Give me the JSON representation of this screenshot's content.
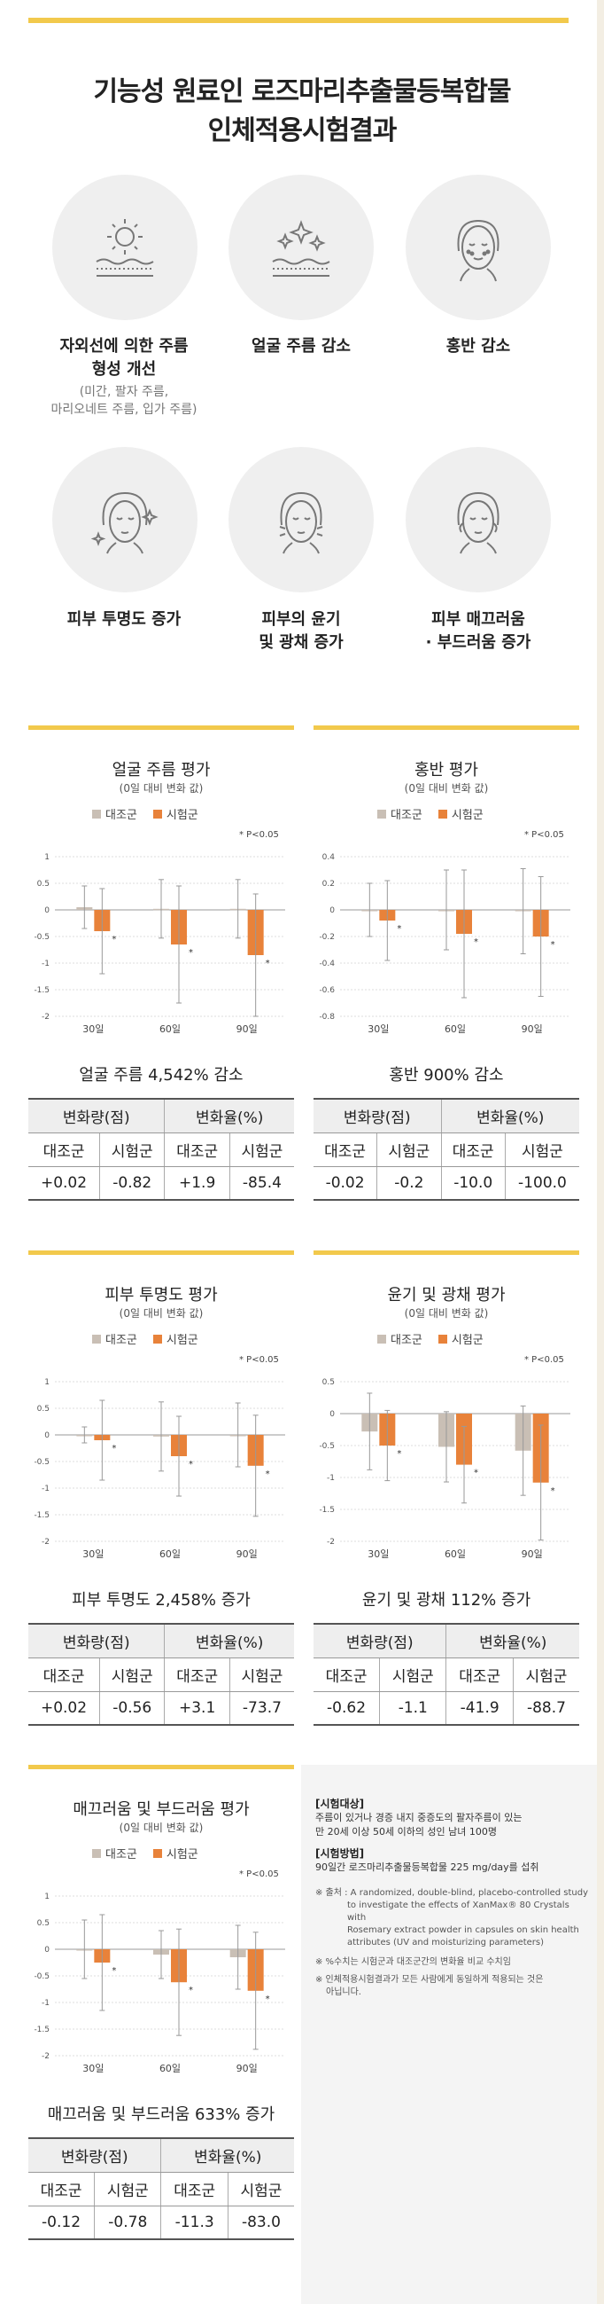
{
  "title": {
    "line1": "기능성 원료인 로즈마리추출물등복합물",
    "line2": "인체적용시험결과"
  },
  "effects": [
    {
      "label1": "자외선에 의한 주름",
      "label2": "형성 개선",
      "sub1": "(미간, 팔자 주름,",
      "sub2": "마리오네트 주름, 입가 주름)",
      "icon": "sun-skin-icon"
    },
    {
      "label1": "얼굴 주름 감소",
      "label2": "",
      "sub1": "",
      "sub2": "",
      "icon": "sparkle-skin-icon"
    },
    {
      "label1": "홍반 감소",
      "label2": "",
      "sub1": "",
      "sub2": "",
      "icon": "face-redness-icon"
    },
    {
      "label1": "피부 투명도 증가",
      "label2": "",
      "sub1": "",
      "sub2": "",
      "icon": "face-sparkle-icon"
    },
    {
      "label1": "피부의 윤기",
      "label2": "및 광채 증가",
      "sub1": "",
      "sub2": "",
      "icon": "face-glow-icon"
    },
    {
      "label1": "피부 매끄러움",
      "label2": "· 부드러움 증가",
      "sub1": "",
      "sub2": "",
      "icon": "face-smooth-icon"
    }
  ],
  "legend": {
    "control": "대조군",
    "test": "시험군"
  },
  "colors": {
    "control": "#c9bfb5",
    "test": "#e8823a",
    "accent": "#f2c94c"
  },
  "p_note": "* P<0.05",
  "chart_data": [
    {
      "type": "bar",
      "title": "얼굴 주름 평가",
      "subtitle": "(0일 대비 변화 값)",
      "categories": [
        "30일",
        "60일",
        "90일"
      ],
      "ylim": [
        -2,
        1
      ],
      "yticks": [
        1,
        0.5,
        0,
        -0.5,
        -1,
        -1.5,
        -2
      ],
      "series": [
        {
          "name": "대조군",
          "values": [
            0.05,
            0.02,
            0.02
          ],
          "err": [
            0.4,
            0.55,
            0.55
          ]
        },
        {
          "name": "시험군",
          "values": [
            -0.4,
            -0.65,
            -0.85
          ],
          "err": [
            0.8,
            1.1,
            1.15
          ]
        }
      ],
      "significant": [
        true,
        true,
        true
      ],
      "result": "얼굴 주름 4,542% 감소",
      "table": {
        "change_amount": "변화량(점)",
        "change_rate": "변화율(%)",
        "control": "대조군",
        "test": "시험군",
        "values": [
          "+0.02",
          "-0.82",
          "+1.9",
          "-85.4"
        ]
      }
    },
    {
      "type": "bar",
      "title": "홍반 평가",
      "subtitle": "(0일 대비 변화 값)",
      "categories": [
        "30일",
        "60일",
        "90일"
      ],
      "ylim": [
        -0.8,
        0.4
      ],
      "yticks": [
        0.4,
        0.2,
        0,
        -0.2,
        -0.4,
        -0.6,
        -0.8
      ],
      "series": [
        {
          "name": "대조군",
          "values": [
            0.0,
            0.0,
            -0.01
          ],
          "err": [
            0.2,
            0.3,
            0.32
          ]
        },
        {
          "name": "시험군",
          "values": [
            -0.08,
            -0.18,
            -0.2
          ],
          "err": [
            0.3,
            0.48,
            0.45
          ]
        }
      ],
      "significant": [
        true,
        true,
        true
      ],
      "result": "홍반 900% 감소",
      "table": {
        "change_amount": "변화량(점)",
        "change_rate": "변화율(%)",
        "control": "대조군",
        "test": "시험군",
        "values": [
          "-0.02",
          "-0.2",
          "-10.0",
          "-100.0"
        ]
      }
    },
    {
      "type": "bar",
      "title": "피부 투명도 평가",
      "subtitle": "(0일 대비 변화 값)",
      "categories": [
        "30일",
        "60일",
        "90일"
      ],
      "ylim": [
        -2,
        1
      ],
      "yticks": [
        1,
        0.5,
        0,
        -0.5,
        -1,
        -1.5,
        -2
      ],
      "series": [
        {
          "name": "대조군",
          "values": [
            0.0,
            -0.03,
            0.0
          ],
          "err": [
            0.15,
            0.65,
            0.6
          ]
        },
        {
          "name": "시험군",
          "values": [
            -0.1,
            -0.4,
            -0.58
          ],
          "err": [
            0.75,
            0.75,
            0.95
          ]
        }
      ],
      "significant": [
        true,
        true,
        true
      ],
      "result": "피부 투명도 2,458% 증가",
      "table": {
        "change_amount": "변화량(점)",
        "change_rate": "변화율(%)",
        "control": "대조군",
        "test": "시험군",
        "values": [
          "+0.02",
          "-0.56",
          "+3.1",
          "-73.7"
        ]
      }
    },
    {
      "type": "bar",
      "title": "윤기 및 광채 평가",
      "subtitle": "(0일 대비 변화 값)",
      "categories": [
        "30일",
        "60일",
        "90일"
      ],
      "ylim": [
        -2,
        0.5
      ],
      "yticks": [
        0.5,
        0,
        -0.5,
        -1,
        -1.5,
        -2
      ],
      "series": [
        {
          "name": "대조군",
          "values": [
            -0.28,
            -0.52,
            -0.58
          ],
          "err": [
            0.6,
            0.55,
            0.7
          ]
        },
        {
          "name": "시험군",
          "values": [
            -0.5,
            -0.8,
            -1.08
          ],
          "err": [
            0.55,
            0.6,
            0.9
          ]
        }
      ],
      "significant": [
        true,
        true,
        true
      ],
      "result": "윤기 및 광채 112% 증가",
      "table": {
        "change_amount": "변화량(점)",
        "change_rate": "변화율(%)",
        "control": "대조군",
        "test": "시험군",
        "values": [
          "-0.62",
          "-1.1",
          "-41.9",
          "-88.7"
        ]
      }
    },
    {
      "type": "bar",
      "title": "매끄러움 및 부드러움 평가",
      "subtitle": "(0일 대비 변화 값)",
      "categories": [
        "30일",
        "60일",
        "90일"
      ],
      "ylim": [
        -2,
        1
      ],
      "yticks": [
        1,
        0.5,
        0,
        -0.5,
        -1,
        -1.5,
        -2
      ],
      "series": [
        {
          "name": "대조군",
          "values": [
            0.0,
            -0.1,
            -0.15
          ],
          "err": [
            0.55,
            0.45,
            0.6
          ]
        },
        {
          "name": "시험군",
          "values": [
            -0.25,
            -0.62,
            -0.78
          ],
          "err": [
            0.9,
            1.0,
            1.1
          ]
        }
      ],
      "significant": [
        true,
        true,
        true
      ],
      "result": "매끄러움 및 부드러움 633% 증가",
      "table": {
        "change_amount": "변화량(점)",
        "change_rate": "변화율(%)",
        "control": "대조군",
        "test": "시험군",
        "values": [
          "-0.12",
          "-0.78",
          "-11.3",
          "-83.0"
        ]
      }
    }
  ],
  "info": {
    "subjects_h": "[시험대상]",
    "subjects_1": "주름이 있거나 경증 내지 중증도의 팔자주름이 있는",
    "subjects_2": "만 20세 이상 50세 이하의 성인 남녀 100명",
    "method_h": "[시험방법]",
    "method_1": "90일간 로즈마리추출물등복합물 225 mg/day를 섭취",
    "source_1": "※ 출처 :  A randomized, double-blind, placebo-controlled study",
    "source_2": "to investigate the effects of XanMax® 80 Crystals with",
    "source_3": "Rosemary extract powder in capsules on skin health",
    "source_4": "attributes (UV and moisturizing parameters)",
    "note1": "※ %수치는 시험군과 대조군간의 변화율 비교 수치임",
    "note2_1": "※ 인체적용시험결과가 모든 사람에게 동일하게 적용되는 것은",
    "note2_2": "아닙니다."
  }
}
